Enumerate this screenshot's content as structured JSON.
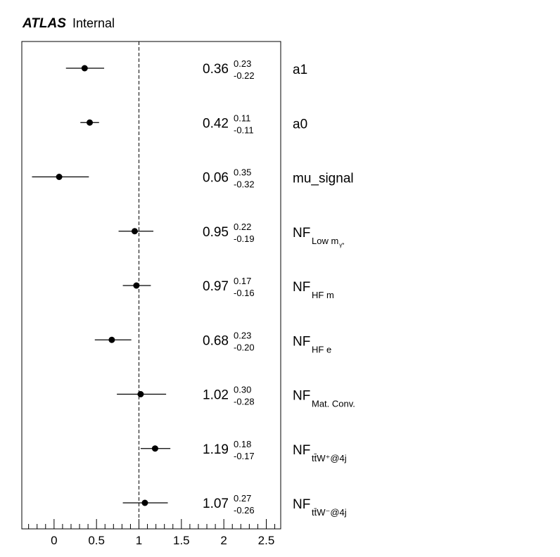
{
  "header": {
    "experiment": "ATLAS",
    "status": "Internal"
  },
  "chart_data": {
    "type": "scatter",
    "orientation": "horizontal",
    "xlim": [
      -0.38,
      2.67
    ],
    "xticks": [
      0,
      0.5,
      1,
      1.5,
      2,
      2.5
    ],
    "xtick_labels": [
      "0",
      "0.5",
      "1",
      "1.5",
      "2",
      "2.5"
    ],
    "reference_line": 1,
    "grid": false,
    "points": [
      {
        "name": "a1",
        "label": {
          "main": "a1",
          "sub": ""
        },
        "value": 0.36,
        "value_label": "0.36",
        "err_up": 0.23,
        "err_up_label": "0.23",
        "err_down": 0.22,
        "err_down_label": "-0.22"
      },
      {
        "name": "a0",
        "label": {
          "main": "a0",
          "sub": ""
        },
        "value": 0.42,
        "value_label": "0.42",
        "err_up": 0.11,
        "err_up_label": "0.11",
        "err_down": 0.11,
        "err_down_label": "-0.11"
      },
      {
        "name": "mu_signal",
        "label": {
          "main": "mu_signal",
          "sub": ""
        },
        "value": 0.06,
        "value_label": "0.06",
        "err_up": 0.35,
        "err_up_label": "0.35",
        "err_down": 0.32,
        "err_down_label": "-0.32"
      },
      {
        "name": "NF_Low_mgamma",
        "label": {
          "main": "NF",
          "sub": "Low m",
          "subsub": "γ*"
        },
        "value": 0.95,
        "value_label": "0.95",
        "err_up": 0.22,
        "err_up_label": "0.22",
        "err_down": 0.19,
        "err_down_label": "-0.19"
      },
      {
        "name": "NF_HF_m",
        "label": {
          "main": "NF",
          "sub": "HF m"
        },
        "value": 0.97,
        "value_label": "0.97",
        "err_up": 0.17,
        "err_up_label": "0.17",
        "err_down": 0.16,
        "err_down_label": "-0.16"
      },
      {
        "name": "NF_HF_e",
        "label": {
          "main": "NF",
          "sub": "HF e"
        },
        "value": 0.68,
        "value_label": "0.68",
        "err_up": 0.23,
        "err_up_label": "0.23",
        "err_down": 0.2,
        "err_down_label": "-0.20"
      },
      {
        "name": "NF_Mat_Conv",
        "label": {
          "main": "NF",
          "sub": "Mat. Conv."
        },
        "value": 1.02,
        "value_label": "1.02",
        "err_up": 0.3,
        "err_up_label": "0.30",
        "err_down": 0.28,
        "err_down_label": "-0.28"
      },
      {
        "name": "NF_ttWplus_4j",
        "label": {
          "main": "NF",
          "sub": "tt̄W⁺@4j"
        },
        "value": 1.19,
        "value_label": "1.19",
        "err_up": 0.18,
        "err_up_label": "0.18",
        "err_down": 0.17,
        "err_down_label": "-0.17"
      },
      {
        "name": "NF_ttWminus_4j",
        "label": {
          "main": "NF",
          "sub": "tt̄W⁻@4j"
        },
        "value": 1.07,
        "value_label": "1.07",
        "err_up": 0.27,
        "err_up_label": "0.27",
        "err_down": 0.26,
        "err_down_label": "-0.26"
      }
    ]
  }
}
